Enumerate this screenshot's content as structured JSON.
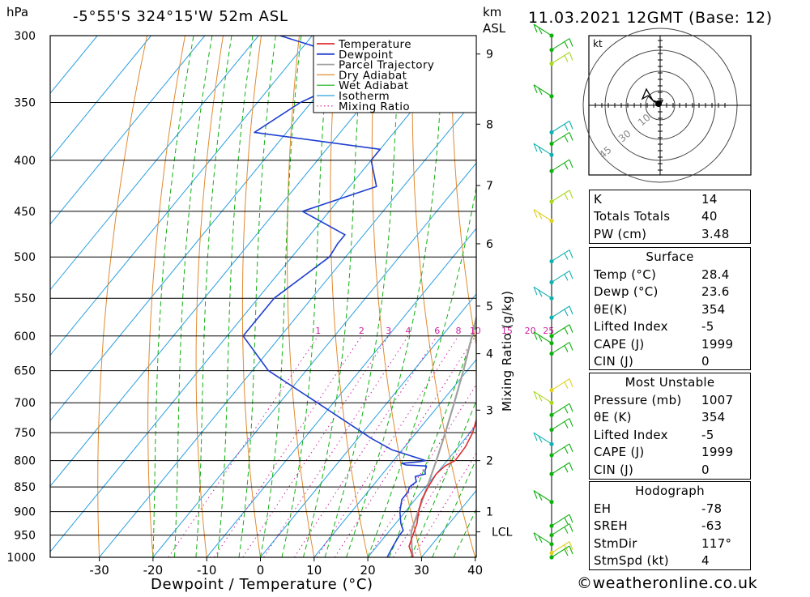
{
  "header": {
    "hpa_unit": "hPa",
    "location": "-5°55'S  324°15'W  52m  ASL",
    "km_unit": "km",
    "asl_unit": "ASL",
    "datetime": "11.03.2021  12GMT  (Base: 12)"
  },
  "footer": {
    "credit": "©weatheronline.co.uk"
  },
  "chart_data": {
    "type": "line",
    "subtype": "skew-T log-P sounding",
    "xlabel": "Dewpoint / Temperature (°C)",
    "ylabel": "hPa",
    "mixing_ratio_axis_label": "Mixing Ratio (g/kg)",
    "pressure_ticks": [
      300,
      350,
      400,
      450,
      500,
      550,
      600,
      650,
      700,
      750,
      800,
      850,
      900,
      950,
      1000
    ],
    "temperature_ticks": [
      -30,
      -20,
      -10,
      0,
      10,
      20,
      30,
      40
    ],
    "height_ticks_km": [
      {
        "label": "9",
        "p": 313
      },
      {
        "label": "8",
        "p": 368
      },
      {
        "label": "7",
        "p": 424
      },
      {
        "label": "6",
        "p": 485
      },
      {
        "label": "5",
        "p": 560
      },
      {
        "label": "4",
        "p": 625
      },
      {
        "label": "3",
        "p": 712
      },
      {
        "label": "2",
        "p": 800
      },
      {
        "label": "1",
        "p": 900
      },
      {
        "label": "LCL",
        "p": 943
      }
    ],
    "mixing_ratio_labels": [
      "1",
      "2",
      "3",
      "4",
      "6",
      "8",
      "10",
      "15",
      "20",
      "25"
    ],
    "legend": [
      "Temperature",
      "Dewpoint",
      "Parcel Trajectory",
      "Dry Adiabat",
      "Wet Adiabat",
      "Isotherm",
      "Mixing Ratio"
    ],
    "colors": {
      "temperature": "#e03030",
      "dewpoint": "#1f3fd0",
      "parcel": "#a0a0a0",
      "dry_adiabat": "#e08a30",
      "wet_adiabat": "#10b010",
      "isotherm": "#2a9fe0",
      "mixing_ratio": "#d020a0"
    },
    "temperature_profile": [
      [
        1000,
        28.4
      ],
      [
        975,
        26.0
      ],
      [
        950,
        25.0
      ],
      [
        925,
        24.0
      ],
      [
        900,
        22.5
      ],
      [
        875,
        21.2
      ],
      [
        850,
        20.5
      ],
      [
        825,
        20.0
      ],
      [
        810,
        20.4
      ],
      [
        800,
        21.5
      ],
      [
        775,
        21.3
      ],
      [
        750,
        20.5
      ],
      [
        700,
        17.5
      ],
      [
        650,
        14.2
      ],
      [
        600,
        11.0
      ],
      [
        550,
        7.5
      ],
      [
        500,
        2.5
      ],
      [
        475,
        -0.6
      ],
      [
        450,
        -2.5
      ],
      [
        425,
        -5.5
      ],
      [
        400,
        -9.0
      ],
      [
        388,
        -11.0
      ],
      [
        375,
        -11.2
      ],
      [
        365,
        -11.5
      ],
      [
        350,
        -13.5
      ],
      [
        325,
        -20.0
      ],
      [
        300,
        -25.0
      ]
    ],
    "dewpoint_profile": [
      [
        1000,
        23.6
      ],
      [
        975,
        23.0
      ],
      [
        950,
        22.5
      ],
      [
        940,
        22.5
      ],
      [
        925,
        21.0
      ],
      [
        900,
        19.0
      ],
      [
        875,
        17.5
      ],
      [
        860,
        17.5
      ],
      [
        850,
        17.0
      ],
      [
        840,
        17.5
      ],
      [
        830,
        16.5
      ],
      [
        825,
        18.0
      ],
      [
        820,
        17.5
      ],
      [
        810,
        17.0
      ],
      [
        808,
        13.0
      ],
      [
        805,
        12.0
      ],
      [
        802,
        15.0
      ],
      [
        800,
        16.0
      ],
      [
        780,
        8.0
      ],
      [
        760,
        2.5
      ],
      [
        750,
        0.0
      ],
      [
        700,
        -13.0
      ],
      [
        650,
        -27.0
      ],
      [
        600,
        -37.0
      ],
      [
        550,
        -37.0
      ],
      [
        500,
        -33.0
      ],
      [
        485,
        -33.5
      ],
      [
        475,
        -33.5
      ],
      [
        450,
        -45.0
      ],
      [
        425,
        -35.0
      ],
      [
        400,
        -40.0
      ],
      [
        390,
        -40.0
      ],
      [
        375,
        -66.0
      ],
      [
        350,
        -62.0
      ],
      [
        325,
        -54.0
      ],
      [
        320,
        -55.0
      ],
      [
        300,
        -76.0
      ]
    ],
    "parcel_profile": [
      [
        1000,
        28.4
      ],
      [
        975,
        26.5
      ],
      [
        950,
        24.7
      ],
      [
        943,
        24.2
      ],
      [
        900,
        22.4
      ],
      [
        850,
        20.3
      ],
      [
        800,
        18.0
      ],
      [
        750,
        15.4
      ],
      [
        700,
        12.5
      ],
      [
        650,
        9.3
      ],
      [
        600,
        5.6
      ],
      [
        550,
        1.5
      ],
      [
        500,
        -3.3
      ],
      [
        450,
        -9.0
      ],
      [
        400,
        -15.7
      ],
      [
        375,
        -19.5
      ],
      [
        350,
        -23.8
      ],
      [
        325,
        -28.5
      ]
    ],
    "indices": {
      "K": "14",
      "Totals Totals": "40",
      "PW (cm)": "3.48"
    },
    "surface": {
      "title": "Surface",
      "rows": [
        {
          "label": "Temp (°C)",
          "value": "28.4"
        },
        {
          "label": "Dewp (°C)",
          "value": "23.6"
        },
        {
          "label": "θE(K)",
          "value": "354"
        },
        {
          "label": "Lifted Index",
          "value": "-5"
        },
        {
          "label": "CAPE (J)",
          "value": "1999"
        },
        {
          "label": "CIN (J)",
          "value": "0"
        }
      ]
    },
    "most_unstable": {
      "title": "Most Unstable",
      "rows": [
        {
          "label": "Pressure (mb)",
          "value": "1007"
        },
        {
          "label": "θE (K)",
          "value": "354"
        },
        {
          "label": "Lifted Index",
          "value": "-5"
        },
        {
          "label": "CAPE (J)",
          "value": "1999"
        },
        {
          "label": "CIN (J)",
          "value": "0"
        }
      ]
    },
    "hodograph": {
      "title": "Hodograph",
      "unit_label": "kt",
      "ring_labels": [
        "10",
        "30",
        "45"
      ],
      "rows": [
        {
          "label": "EH",
          "value": "-78"
        },
        {
          "label": "SREH",
          "value": "-63"
        },
        {
          "label": "StmDir",
          "value": "117°"
        },
        {
          "label": "StmSpd (kt)",
          "value": "4"
        }
      ]
    },
    "wind_barb_levels_hpa": [
      300,
      310,
      320,
      345,
      375,
      385,
      395,
      410,
      440,
      460,
      505,
      530,
      550,
      575,
      600,
      610,
      625,
      680,
      700,
      720,
      745,
      770,
      790,
      825,
      880,
      930,
      950,
      970,
      990,
      1000
    ]
  }
}
